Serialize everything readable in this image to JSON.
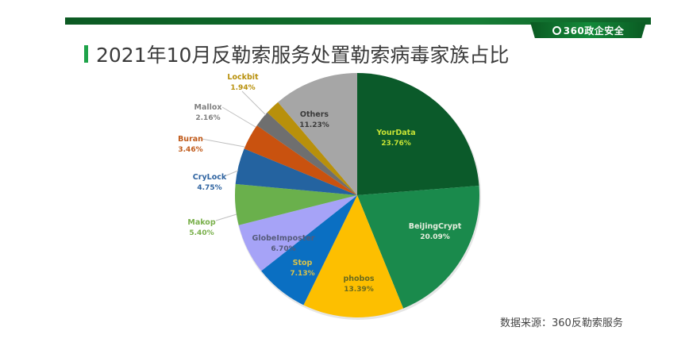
{
  "header": {
    "brand_label": "360政企安全",
    "title": "2021年10月反勒索服务处置勒索病毒家族占比"
  },
  "footer": {
    "source": "数据来源：360反勒索服务"
  },
  "colors": {
    "top_bar": "#0f6b2b",
    "title_accent": "#1fa34a"
  },
  "chart_data": {
    "type": "pie",
    "title": "2021年10月反勒索服务处置勒索病毒家族占比",
    "start_angle": "12 o'clock, clockwise",
    "legend": "none (data labels on/near slices)",
    "categories": [
      "YourData",
      "BeiJingCrypt",
      "phobos",
      "Stop",
      "GlobeImposter",
      "Makop",
      "CryLock",
      "Buran",
      "Mallox",
      "Lockbit",
      "Others"
    ],
    "values": [
      23.76,
      20.09,
      13.39,
      7.13,
      6.7,
      5.4,
      4.75,
      3.46,
      2.16,
      1.94,
      11.23
    ],
    "labels": [
      "23.76%",
      "20.09%",
      "13.39%",
      "7.13%",
      "6.70%",
      "5.40%",
      "4.75%",
      "3.46%",
      "2.16%",
      "1.94%",
      "11.23%"
    ],
    "slice_colors": [
      "#0b5a2a",
      "#1a8a4c",
      "#fdbf00",
      "#0a6fc2",
      "#a6a3f7",
      "#6ab04c",
      "#2463a0",
      "#c9520f",
      "#6f6f6f",
      "#b8900b",
      "#a6a6a6"
    ],
    "label_colors": [
      "#c6e335",
      "#e6eede",
      "#6b6b1e",
      "#d9c34a",
      "#555a7a",
      "#7ab04c",
      "#2e63a0",
      "#c05a1a",
      "#808080",
      "#b8900b",
      "#3a3a3a"
    ],
    "outside_labels": [
      "Makop",
      "CryLock",
      "Buran",
      "Mallox",
      "Lockbit"
    ]
  }
}
